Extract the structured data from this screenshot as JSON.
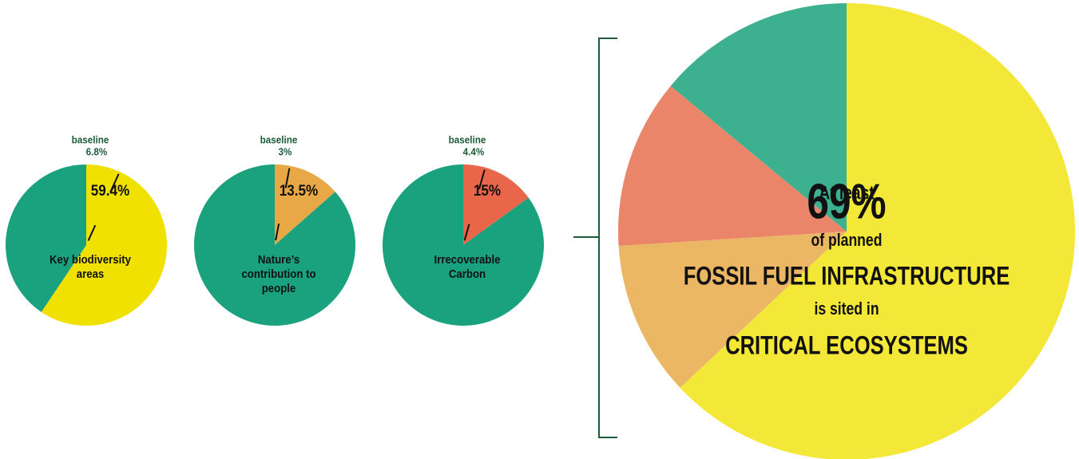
{
  "chart_data": [
    {
      "type": "pie",
      "title": "Key biodiversity areas",
      "values": [
        59.4,
        40.6
      ],
      "value_labels": [
        "59.4%",
        null
      ],
      "colors": [
        "#f0e100",
        "#1aa27f"
      ],
      "baseline": {
        "label": "baseline",
        "value": 6.8,
        "value_label": "6.8%"
      }
    },
    {
      "type": "pie",
      "title": "Nature’s contribution to people",
      "values": [
        13.5,
        86.5
      ],
      "value_labels": [
        "13.5%",
        null
      ],
      "colors": [
        "#e8a846",
        "#1aa27f"
      ],
      "baseline": {
        "label": "baseline",
        "value": 3,
        "value_label": "3%"
      }
    },
    {
      "type": "pie",
      "title": "Irrecoverable Carbon",
      "values": [
        15,
        85
      ],
      "value_labels": [
        "15%",
        null
      ],
      "colors": [
        "#e8664a",
        "#1aa27f"
      ],
      "baseline": {
        "label": "baseline",
        "value": 4.4,
        "value_label": "4.4%"
      }
    },
    {
      "type": "pie",
      "values": [
        63,
        11,
        12,
        14
      ],
      "colors": [
        "#f3e737",
        "#ecb765",
        "#ea856a",
        "#3db08f"
      ],
      "annotations": [
        "At least",
        "69%",
        "of planned",
        "FOSSIL FUEL INFRASTRUCTURE",
        "is sited in",
        "CRITICAL ECOSYSTEMS"
      ]
    }
  ]
}
